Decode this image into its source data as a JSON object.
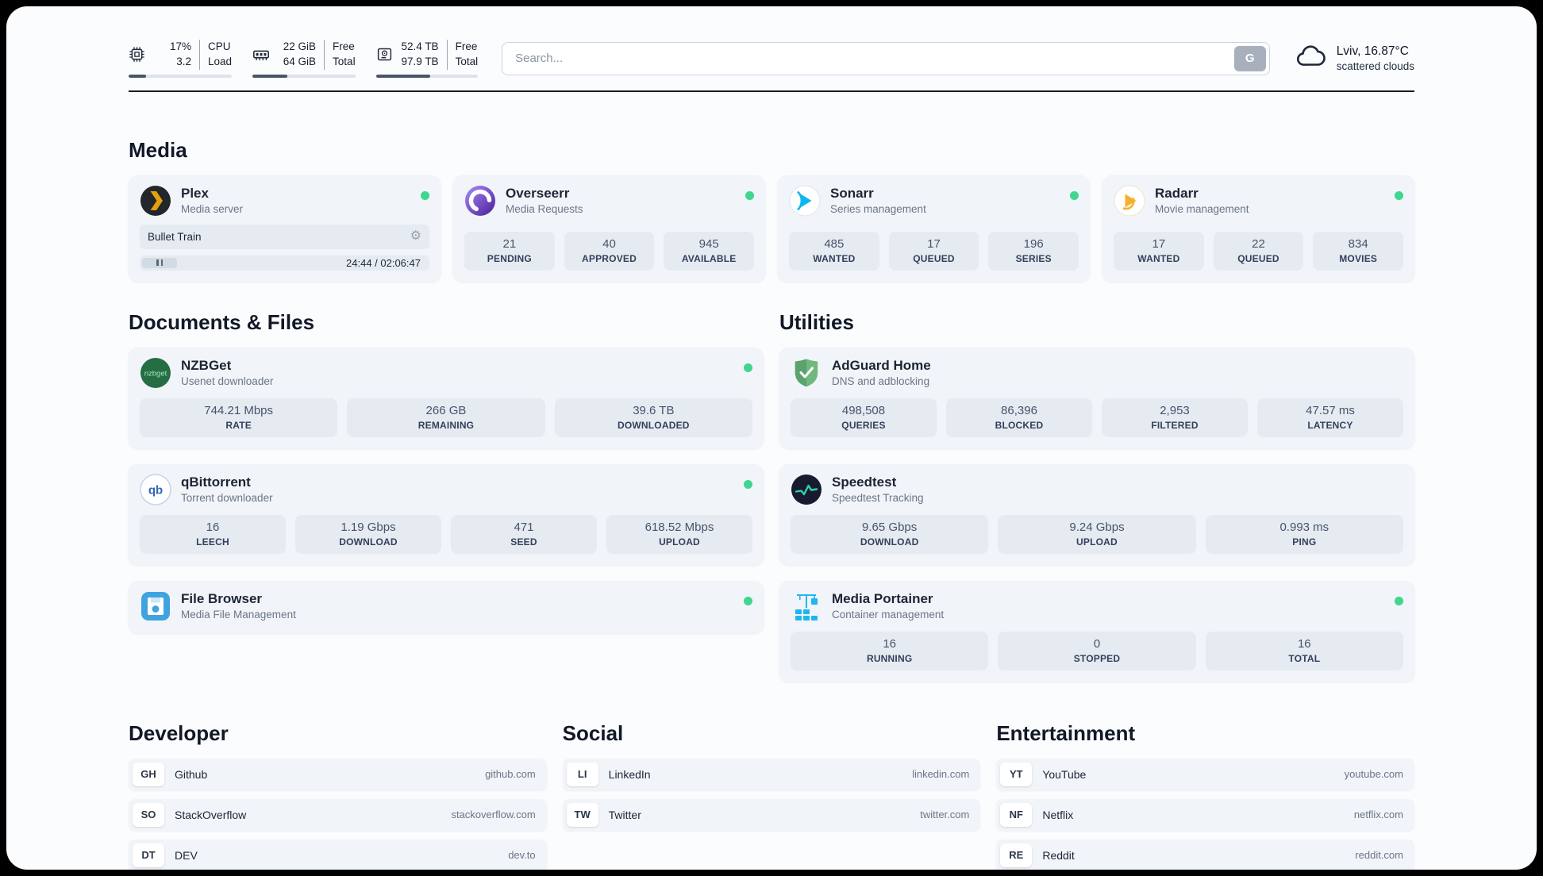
{
  "colors": {
    "status_online": "#3fd68f",
    "card_bg": "#f1f4f9",
    "stat_bg": "#e6ebf2",
    "header_rule": "#141c29"
  },
  "topbar": {
    "metrics": [
      {
        "icon": "cpu-icon",
        "value": "17%",
        "value2": "3.2",
        "label": "CPU",
        "label2": "Load",
        "progress_pct": 17
      },
      {
        "icon": "ram-icon",
        "value": "22 GiB",
        "value2": "64 GiB",
        "label": "Free",
        "label2": "Total",
        "progress_pct": 34
      },
      {
        "icon": "disk-icon",
        "value": "52.4 TB",
        "value2": "97.9 TB",
        "label": "Free",
        "label2": "Total",
        "progress_pct": 53
      }
    ],
    "search": {
      "placeholder": "Search...",
      "button_label": "G"
    },
    "weather": {
      "location": "Lviv, 16.87°C",
      "condition": "scattered clouds"
    }
  },
  "media": {
    "title": "Media",
    "plex": {
      "name": "Plex",
      "desc": "Media server",
      "now_playing": "Bullet Train",
      "time": "24:44 / 02:06:47"
    },
    "overseerr": {
      "name": "Overseerr",
      "desc": "Media Requests",
      "stats": [
        {
          "value": "21",
          "label": "PENDING"
        },
        {
          "value": "40",
          "label": "APPROVED"
        },
        {
          "value": "945",
          "label": "AVAILABLE"
        }
      ]
    },
    "sonarr": {
      "name": "Sonarr",
      "desc": "Series management",
      "stats": [
        {
          "value": "485",
          "label": "WANTED"
        },
        {
          "value": "17",
          "label": "QUEUED"
        },
        {
          "value": "196",
          "label": "SERIES"
        }
      ]
    },
    "radarr": {
      "name": "Radarr",
      "desc": "Movie management",
      "stats": [
        {
          "value": "17",
          "label": "WANTED"
        },
        {
          "value": "22",
          "label": "QUEUED"
        },
        {
          "value": "834",
          "label": "MOVIES"
        }
      ]
    }
  },
  "documents": {
    "title": "Documents & Files",
    "nzbget": {
      "name": "NZBGet",
      "desc": "Usenet downloader",
      "stats": [
        {
          "value": "744.21 Mbps",
          "label": "RATE"
        },
        {
          "value": "266 GB",
          "label": "REMAINING"
        },
        {
          "value": "39.6 TB",
          "label": "DOWNLOADED"
        }
      ]
    },
    "qbittorrent": {
      "name": "qBittorrent",
      "desc": "Torrent downloader",
      "stats": [
        {
          "value": "16",
          "label": "LEECH"
        },
        {
          "value": "1.19 Gbps",
          "label": "DOWNLOAD"
        },
        {
          "value": "471",
          "label": "SEED"
        },
        {
          "value": "618.52 Mbps",
          "label": "UPLOAD"
        }
      ]
    },
    "filebrowser": {
      "name": "File Browser",
      "desc": "Media File Management"
    }
  },
  "utilities": {
    "title": "Utilities",
    "adguard": {
      "name": "AdGuard Home",
      "desc": "DNS and adblocking",
      "stats": [
        {
          "value": "498,508",
          "label": "QUERIES"
        },
        {
          "value": "86,396",
          "label": "BLOCKED"
        },
        {
          "value": "2,953",
          "label": "FILTERED"
        },
        {
          "value": "47.57 ms",
          "label": "LATENCY"
        }
      ]
    },
    "speedtest": {
      "name": "Speedtest",
      "desc": "Speedtest Tracking",
      "stats": [
        {
          "value": "9.65 Gbps",
          "label": "DOWNLOAD"
        },
        {
          "value": "9.24 Gbps",
          "label": "UPLOAD"
        },
        {
          "value": "0.993 ms",
          "label": "PING"
        }
      ]
    },
    "portainer": {
      "name": "Media Portainer",
      "desc": "Container management",
      "stats": [
        {
          "value": "16",
          "label": "RUNNING"
        },
        {
          "value": "0",
          "label": "STOPPED"
        },
        {
          "value": "16",
          "label": "TOTAL"
        }
      ]
    }
  },
  "bookmarks": [
    {
      "title": "Developer",
      "links": [
        {
          "abbr": "GH",
          "name": "Github",
          "url": "github.com"
        },
        {
          "abbr": "SO",
          "name": "StackOverflow",
          "url": "stackoverflow.com"
        },
        {
          "abbr": "DT",
          "name": "DEV",
          "url": "dev.to"
        }
      ]
    },
    {
      "title": "Social",
      "links": [
        {
          "abbr": "LI",
          "name": "LinkedIn",
          "url": "linkedin.com"
        },
        {
          "abbr": "TW",
          "name": "Twitter",
          "url": "twitter.com"
        }
      ]
    },
    {
      "title": "Entertainment",
      "links": [
        {
          "abbr": "YT",
          "name": "YouTube",
          "url": "youtube.com"
        },
        {
          "abbr": "NF",
          "name": "Netflix",
          "url": "netflix.com"
        },
        {
          "abbr": "RE",
          "name": "Reddit",
          "url": "reddit.com"
        }
      ]
    }
  ]
}
